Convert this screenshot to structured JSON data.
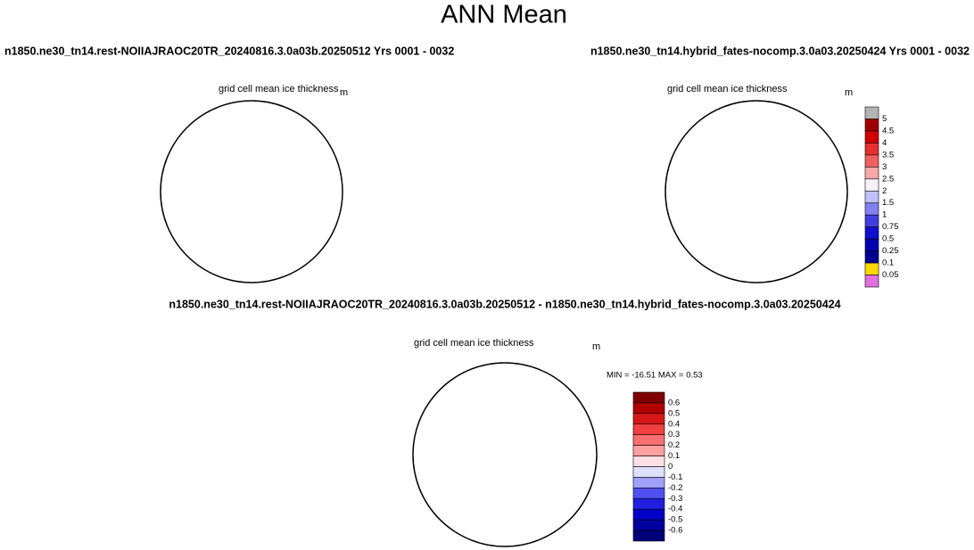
{
  "title": "ANN Mean",
  "panels": [
    {
      "subtitle": "n1850.ne30_tn14.rest-NOIIAJRAOC20TR_20240816.3.0a03b.20250512  Yrs 0001 - 0032",
      "label": "grid cell mean ice thickness",
      "units": "m"
    },
    {
      "subtitle": "n1850.ne30_tn14.hybrid_fates-nocomp.3.0a03.20250424  Yrs 0001 - 0032",
      "label": "grid cell mean ice thickness",
      "units": "m"
    },
    {
      "subtitle": "n1850.ne30_tn14.rest-NOIIAJRAOC20TR_20240816.3.0a03b.20250512 - n1850.ne30_tn14.hybrid_fates-nocomp.3.0a03.20250424",
      "label": "grid cell mean ice thickness",
      "units": "m",
      "stats": "MIN = -16.51 MAX =   0.53"
    }
  ],
  "colorbars": [
    {
      "labels": [
        "5",
        "4.5",
        "4",
        "3.5",
        "3",
        "2.5",
        "2",
        "1.5",
        "1",
        "0.75",
        "0.5",
        "0.25",
        "0.1",
        "0.05"
      ],
      "colors": [
        "#b4b4b4",
        "#a00000",
        "#d00000",
        "#e83030",
        "#f06060",
        "#f8a8a8",
        "#f8f0f8",
        "#c0c0ff",
        "#8080f0",
        "#4040e0",
        "#1010d0",
        "#0000b0",
        "#000090",
        "#ffd800",
        "#e070e0"
      ]
    },
    {
      "labels": [
        "0.6",
        "0.5",
        "0.4",
        "0.3",
        "0.2",
        "0.1",
        "0",
        "-0.1",
        "-0.2",
        "-0.3",
        "-0.4",
        "-0.5",
        "-0.6"
      ],
      "colors": [
        "#800000",
        "#b00000",
        "#d81818",
        "#f04040",
        "#f87070",
        "#fca0a0",
        "#fde0e6",
        "#e0e0fc",
        "#a0a0f8",
        "#5050f0",
        "#2020e0",
        "#0000c8",
        "#0000a0",
        "#000078"
      ]
    }
  ]
}
